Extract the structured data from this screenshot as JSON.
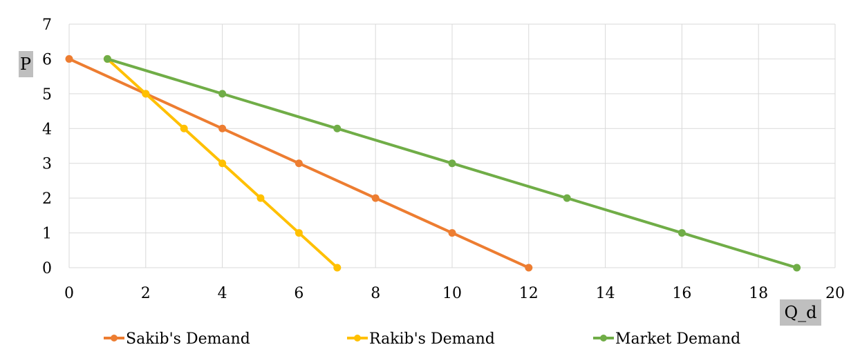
{
  "chart_data": {
    "type": "line",
    "xlabel": "Q_d",
    "ylabel": "P",
    "xlim": [
      0,
      20
    ],
    "ylim": [
      0,
      7
    ],
    "xticks": [
      0,
      2,
      4,
      6,
      8,
      10,
      12,
      14,
      16,
      18,
      20
    ],
    "yticks": [
      0,
      1,
      2,
      3,
      4,
      5,
      6,
      7
    ],
    "grid": true,
    "legend_position": "bottom",
    "series": [
      {
        "name": "Sakib's Demand",
        "color": "#ED7D31",
        "points": [
          [
            0,
            6
          ],
          [
            2,
            5
          ],
          [
            4,
            4
          ],
          [
            6,
            3
          ],
          [
            8,
            2
          ],
          [
            10,
            1
          ],
          [
            12,
            0
          ]
        ]
      },
      {
        "name": "Rakib's Demand",
        "color": "#FFC000",
        "points": [
          [
            1,
            6
          ],
          [
            2,
            5
          ],
          [
            3,
            4
          ],
          [
            4,
            3
          ],
          [
            5,
            2
          ],
          [
            6,
            1
          ],
          [
            7,
            0
          ]
        ]
      },
      {
        "name": "Market Demand",
        "color": "#70AD47",
        "points": [
          [
            1,
            6
          ],
          [
            4,
            5
          ],
          [
            7,
            4
          ],
          [
            10,
            3
          ],
          [
            13,
            2
          ],
          [
            16,
            1
          ],
          [
            19,
            0
          ]
        ]
      }
    ]
  }
}
